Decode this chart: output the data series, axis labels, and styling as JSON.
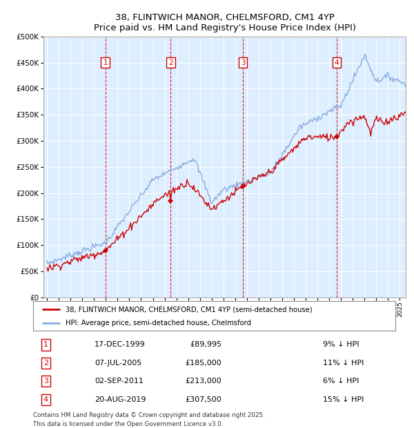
{
  "title": "38, FLINTWICH MANOR, CHELMSFORD, CM1 4YP",
  "subtitle": "Price paid vs. HM Land Registry's House Price Index (HPI)",
  "ylim": [
    0,
    500000
  ],
  "yticks": [
    0,
    50000,
    100000,
    150000,
    200000,
    250000,
    300000,
    350000,
    400000,
    450000,
    500000
  ],
  "ytick_labels": [
    "£0",
    "£50K",
    "£100K",
    "£150K",
    "£200K",
    "£250K",
    "£300K",
    "£350K",
    "£400K",
    "£450K",
    "£500K"
  ],
  "xlim_start": 1994.7,
  "xlim_end": 2025.5,
  "background_color": "#ddeeff",
  "red_line_color": "#cc0000",
  "blue_line_color": "#88aadd",
  "grid_color": "#ffffff",
  "sale_marker_color": "#cc0000",
  "sales": [
    {
      "num": 1,
      "year": 1999.96,
      "price": 89995
    },
    {
      "num": 2,
      "year": 2005.52,
      "price": 185000
    },
    {
      "num": 3,
      "year": 2011.67,
      "price": 213000
    },
    {
      "num": 4,
      "year": 2019.63,
      "price": 307500
    }
  ],
  "legend_entries": [
    "38, FLINTWICH MANOR, CHELMSFORD, CM1 4YP (semi-detached house)",
    "HPI: Average price, semi-detached house, Chelmsford"
  ],
  "table_data": [
    [
      1,
      "17-DEC-1999",
      "£89,995",
      "9% ↓ HPI"
    ],
    [
      2,
      "07-JUL-2005",
      "£185,000",
      "11% ↓ HPI"
    ],
    [
      3,
      "02-SEP-2011",
      "£213,000",
      "6% ↓ HPI"
    ],
    [
      4,
      "20-AUG-2019",
      "£307,500",
      "15% ↓ HPI"
    ]
  ],
  "footer_line1": "Contains HM Land Registry data © Crown copyright and database right 2025.",
  "footer_line2": "This data is licensed under the Open Government Licence v3.0."
}
